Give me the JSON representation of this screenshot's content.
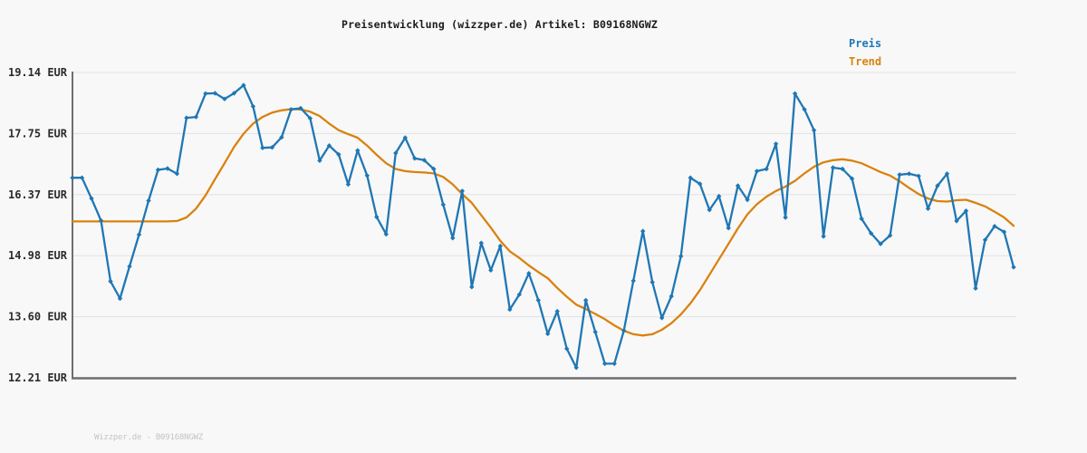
{
  "title": "Preisentwicklung (wizzper.de) Artikel: B09168NGWZ",
  "footer": "Wizzper.de - B09168NGWZ",
  "legend": {
    "preis": {
      "label": "Preis",
      "color": "#1f77b4"
    },
    "trend": {
      "label": "Trend",
      "color": "#d9820f"
    }
  },
  "colors": {
    "background": "#f8f8f8",
    "grid": "#e2e2e2",
    "axis": "#6e6e6e",
    "title_text": "#1b1b1b",
    "tick_text": "#2b2b2b",
    "footer_text": "#c3c3c3",
    "price_blue": "#1f77b4",
    "trend_orange": "#d9820f"
  },
  "chart_data": {
    "type": "line",
    "title": "Preisentwicklung (wizzper.de) Artikel: B09168NGWZ",
    "xlabel": "",
    "ylabel": "EUR",
    "ylim": [
      12.21,
      19.14
    ],
    "grid": true,
    "legend_position": "top-right",
    "x_tick_labels": [],
    "y_tick_labels": [
      "19.14 EUR",
      "17.75 EUR",
      "16.37 EUR",
      "14.98 EUR",
      "13.60 EUR",
      "12.21 EUR"
    ],
    "y_tick_values": [
      19.14,
      17.75,
      16.37,
      14.98,
      13.6,
      12.21
    ],
    "x": {
      "type": "index",
      "count": 100
    },
    "series": [
      {
        "name": "Preis",
        "color": "#1f77b4",
        "marker": "diamond",
        "values": [
          16.75,
          16.75,
          16.28,
          15.78,
          14.4,
          14.01,
          14.74,
          15.46,
          16.23,
          16.93,
          16.96,
          16.84,
          18.11,
          18.13,
          18.66,
          18.67,
          18.54,
          18.67,
          18.85,
          18.37,
          17.43,
          17.44,
          17.67,
          18.3,
          18.33,
          18.1,
          17.14,
          17.48,
          17.28,
          16.6,
          17.37,
          16.8,
          15.86,
          15.47,
          17.31,
          17.66,
          17.19,
          17.15,
          16.95,
          16.14,
          15.38,
          16.45,
          14.27,
          15.27,
          14.65,
          15.2,
          13.76,
          14.1,
          14.58,
          13.97,
          13.21,
          13.72,
          12.87,
          12.44,
          13.97,
          13.25,
          12.53,
          12.53,
          13.28,
          14.41,
          15.54,
          14.38,
          13.57,
          14.06,
          14.97,
          16.75,
          16.61,
          16.02,
          16.33,
          15.61,
          16.57,
          16.25,
          16.9,
          16.95,
          17.52,
          15.85,
          18.66,
          18.3,
          17.83,
          15.42,
          16.98,
          16.95,
          16.73,
          15.82,
          15.49,
          15.25,
          15.44,
          16.82,
          16.84,
          16.79,
          16.05,
          16.57,
          16.84,
          15.77,
          16.0,
          14.24,
          15.34,
          15.65,
          15.52,
          14.72
        ]
      },
      {
        "name": "Trend",
        "color": "#d9820f",
        "marker": "none",
        "values": [
          15.76,
          15.76,
          15.76,
          15.76,
          15.76,
          15.76,
          15.76,
          15.76,
          15.76,
          15.76,
          15.76,
          15.77,
          15.85,
          16.05,
          16.35,
          16.72,
          17.08,
          17.45,
          17.75,
          17.98,
          18.13,
          18.23,
          18.28,
          18.31,
          18.3,
          18.25,
          18.15,
          17.98,
          17.83,
          17.74,
          17.66,
          17.48,
          17.27,
          17.08,
          16.95,
          16.9,
          16.88,
          16.87,
          16.85,
          16.77,
          16.6,
          16.38,
          16.18,
          15.9,
          15.62,
          15.32,
          15.08,
          14.93,
          14.76,
          14.61,
          14.47,
          14.25,
          14.05,
          13.87,
          13.77,
          13.66,
          13.54,
          13.4,
          13.28,
          13.2,
          13.17,
          13.2,
          13.3,
          13.45,
          13.65,
          13.9,
          14.2,
          14.55,
          14.9,
          15.25,
          15.6,
          15.92,
          16.15,
          16.32,
          16.45,
          16.55,
          16.68,
          16.85,
          17.0,
          17.1,
          17.15,
          17.17,
          17.14,
          17.08,
          16.98,
          16.88,
          16.8,
          16.67,
          16.52,
          16.38,
          16.28,
          16.22,
          16.21,
          16.24,
          16.25,
          16.18,
          16.1,
          15.98,
          15.85,
          15.66
        ]
      }
    ]
  }
}
